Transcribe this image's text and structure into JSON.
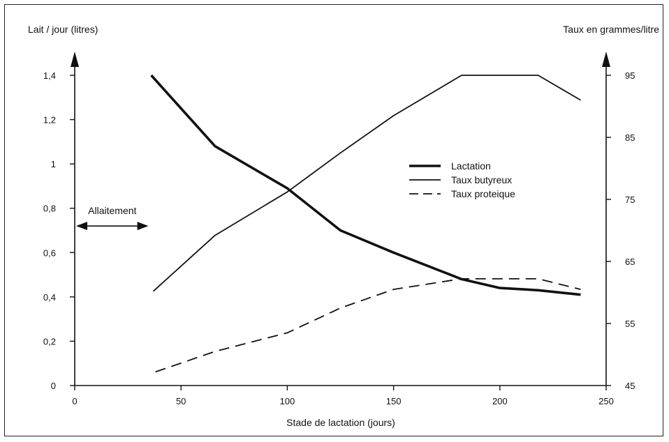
{
  "chart_data": {
    "type": "line",
    "title": "",
    "xlabel": "Stade de lactation (jours)",
    "ylabel_left": "Lait / jour (litres)",
    "ylabel_right": "Taux en grammes/litre",
    "xlim": [
      0,
      250
    ],
    "ylim_left": [
      0,
      1.4
    ],
    "ylim_right": [
      45,
      95
    ],
    "x_ticks": [
      "0",
      "50",
      "100",
      "150",
      "200",
      "250"
    ],
    "y_ticks_left": [
      "0",
      "0,2",
      "0,4",
      "0,6",
      "0,8",
      "1",
      "1,2",
      "1,4"
    ],
    "y_ticks_right": [
      "45",
      "55",
      "65",
      "75",
      "85",
      "95"
    ],
    "grid": false,
    "legend_position": "center-right",
    "series": [
      {
        "name": "Lactation",
        "axis": "left",
        "style": "thick-solid",
        "x": [
          36,
          66,
          100,
          125,
          150,
          182,
          200,
          218,
          238
        ],
        "y": [
          1.4,
          1.08,
          0.89,
          0.7,
          0.6,
          0.48,
          0.44,
          0.43,
          0.41
        ]
      },
      {
        "name": "Taux butyreux",
        "axis": "right",
        "style": "solid",
        "x": [
          37,
          66,
          100,
          125,
          150,
          182,
          200,
          218,
          238
        ],
        "y": [
          60.2,
          69.2,
          76.2,
          82.5,
          88.5,
          95,
          95,
          95,
          91
        ]
      },
      {
        "name": "Taux proteique",
        "axis": "right",
        "style": "dashed",
        "x": [
          38,
          66,
          100,
          125,
          150,
          182,
          200,
          218,
          238
        ],
        "y": [
          47.2,
          50.5,
          53.5,
          57.5,
          60.5,
          62.2,
          62.2,
          62.2,
          60.5
        ]
      }
    ],
    "annotations": [
      {
        "text": "Allaitement",
        "x_range": [
          0,
          36
        ],
        "y": 0.72
      }
    ]
  },
  "colors": {
    "ink": "#111111",
    "background": "#ffffff"
  }
}
